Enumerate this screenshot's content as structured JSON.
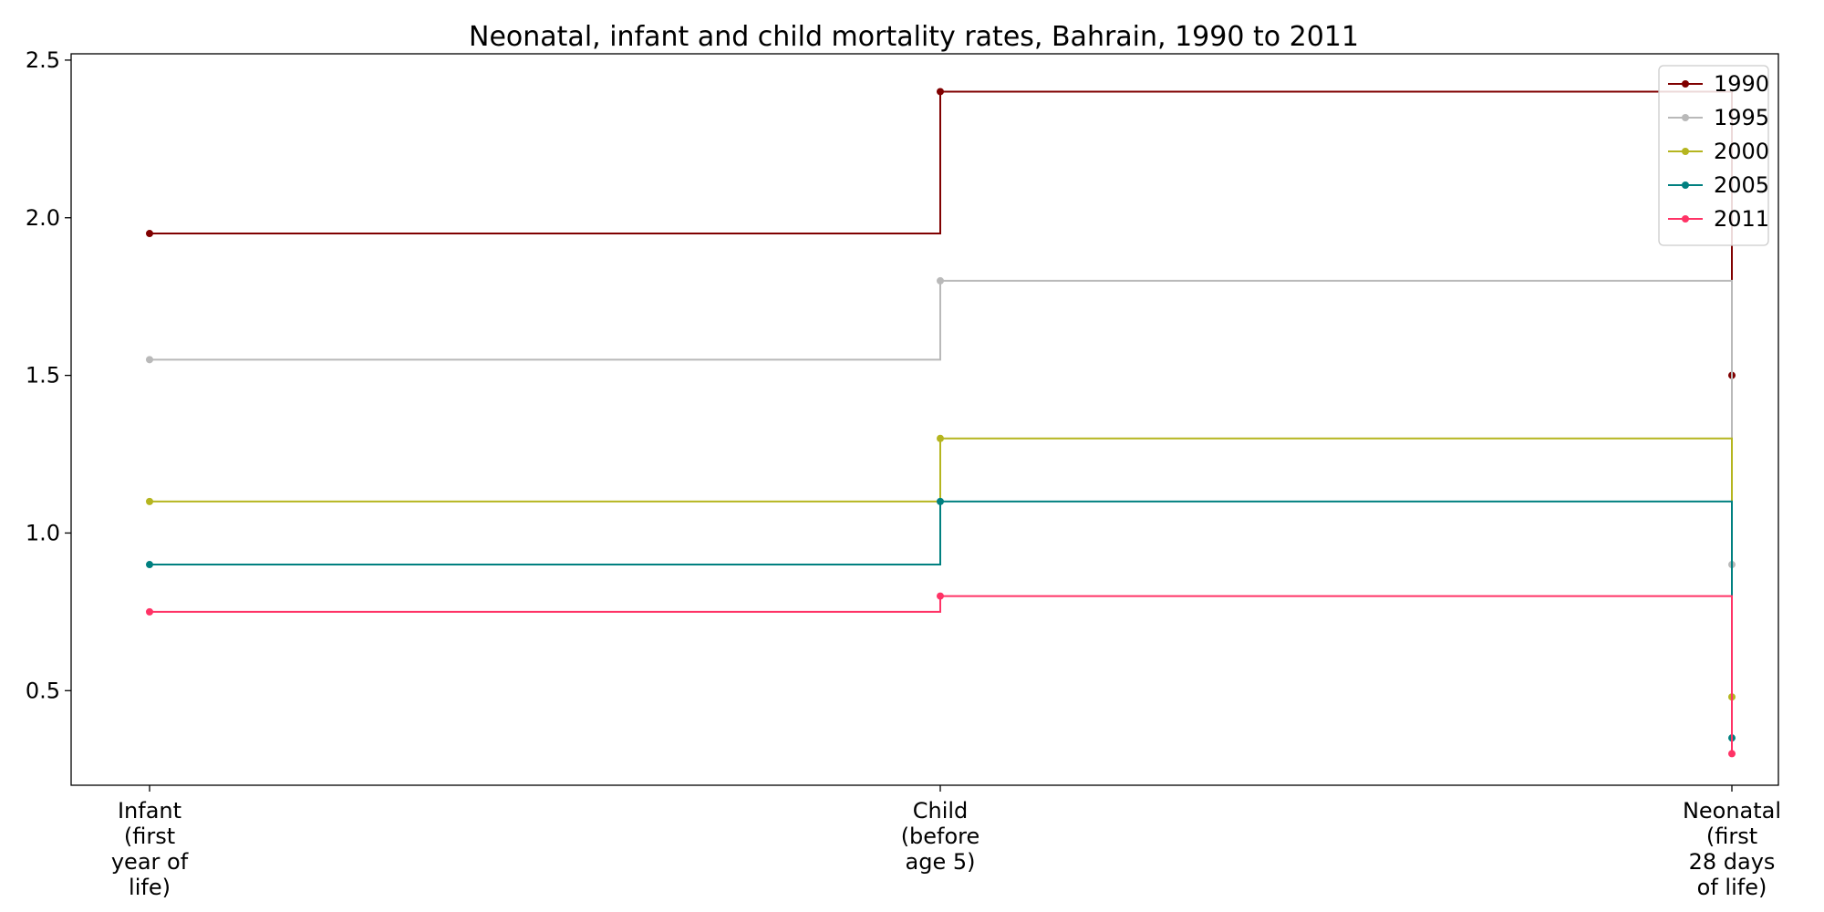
{
  "chart_data": {
    "type": "line",
    "step": "post",
    "title": "Neonatal, infant and child mortality rates, Bahrain, 1990 to 2011",
    "xlabel": "",
    "ylabel": "",
    "categories": [
      [
        "Infant",
        "(first",
        "year of",
        "life)"
      ],
      [
        "Child",
        "(before",
        "age 5)"
      ],
      [
        "Neonatal",
        "(first",
        "28 days",
        "of life)"
      ]
    ],
    "ylim": [
      0.2,
      2.52
    ],
    "yticks": [
      "0.5",
      "1.0",
      "1.5",
      "2.0",
      "2.5"
    ],
    "grid": false,
    "legend_position": "top-right",
    "series": [
      {
        "name": "1990",
        "color": "#800000",
        "values": [
          1.95,
          2.4,
          1.5
        ]
      },
      {
        "name": "1995",
        "color": "#b9b9b9",
        "values": [
          1.55,
          1.8,
          0.9
        ]
      },
      {
        "name": "2000",
        "color": "#b5b51f",
        "values": [
          1.1,
          1.3,
          0.48
        ]
      },
      {
        "name": "2005",
        "color": "#008080",
        "values": [
          0.9,
          1.1,
          0.35
        ]
      },
      {
        "name": "2011",
        "color": "#ff3366",
        "values": [
          0.75,
          0.8,
          0.3
        ]
      }
    ]
  }
}
